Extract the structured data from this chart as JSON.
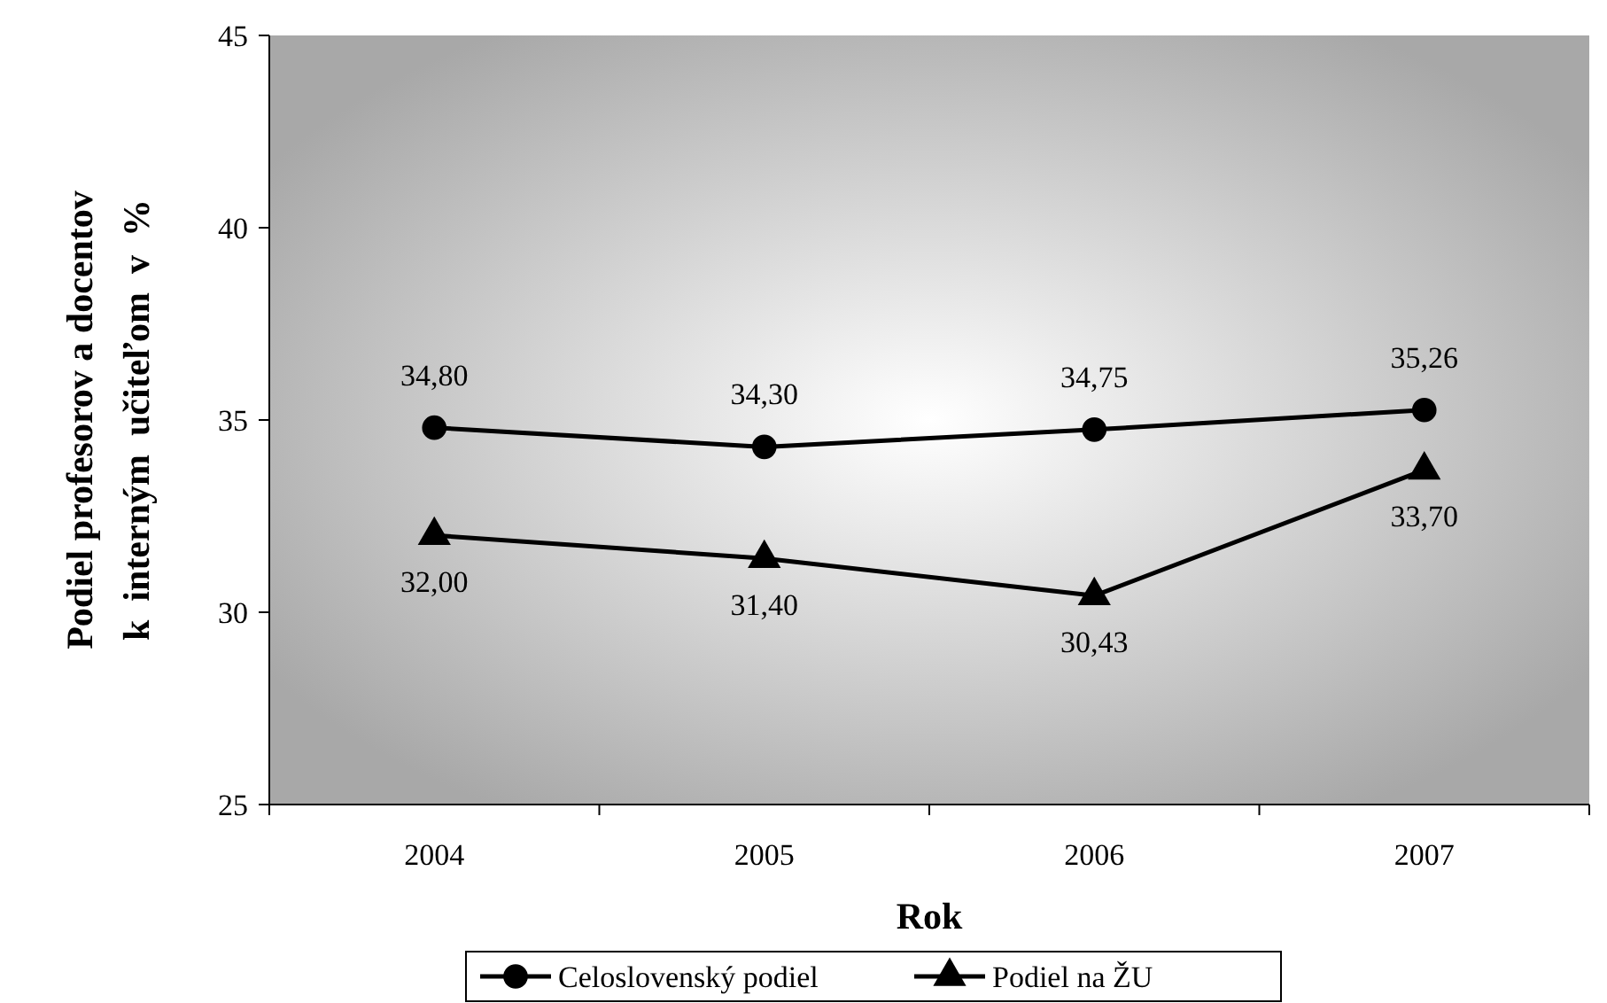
{
  "chart_data": {
    "type": "line",
    "xlabel": "Rok",
    "ylabel": "Podiel profesorov a docentov\nk  interným  učiteľom  v  %",
    "categories": [
      "2004",
      "2005",
      "2006",
      "2007"
    ],
    "series": [
      {
        "name": "Celoslovenský podiel",
        "color": "#000000",
        "marker": "circle",
        "values": [
          34.8,
          34.3,
          34.75,
          35.26
        ],
        "value_labels": [
          "34,80",
          "34,30",
          "34,75",
          "35,26"
        ]
      },
      {
        "name": "Podiel na ŽU",
        "color": "#000000",
        "marker": "triangle",
        "values": [
          32.0,
          31.4,
          30.43,
          33.7
        ],
        "value_labels": [
          "32,00",
          "31,40",
          "30,43",
          "33,70"
        ]
      }
    ],
    "ylim": [
      25,
      45
    ],
    "yticks": [
      25,
      30,
      35,
      40,
      45
    ],
    "grid": false,
    "legend": "bottom",
    "line_style": "solid"
  }
}
